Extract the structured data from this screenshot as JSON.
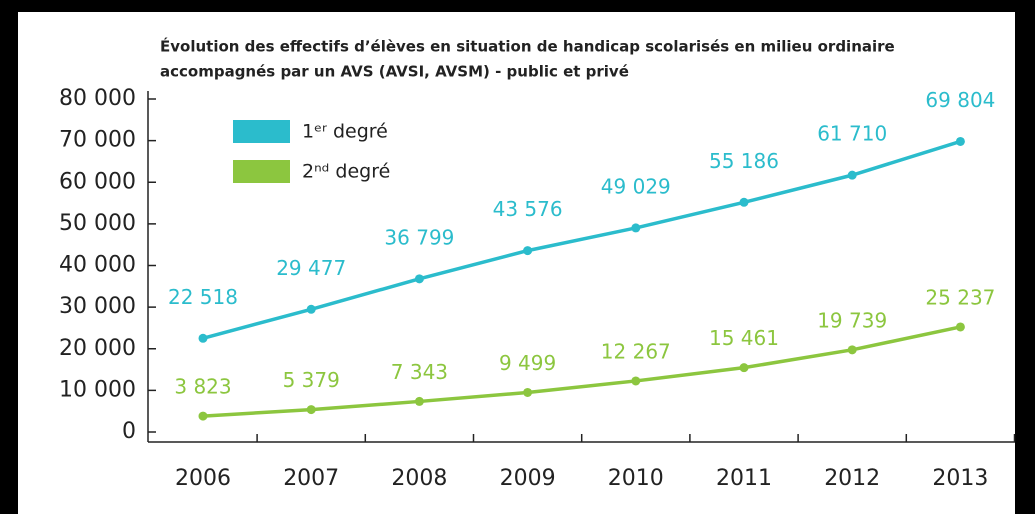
{
  "chart_data": {
    "type": "line",
    "title": [
      "Évolution des effectifs d’élèves en situation de handicap scolarisés en milieu ordinaire",
      "accompagnés par un AVS (AVSI, AVSM) - public et privé"
    ],
    "categories": [
      "2006",
      "2007",
      "2008",
      "2009",
      "2010",
      "2011",
      "2012",
      "2013"
    ],
    "series": [
      {
        "name": "1ᵉʳ degré",
        "color": "#2bbccc",
        "values": [
          22518,
          29477,
          36799,
          43576,
          49029,
          55186,
          61710,
          69804
        ],
        "value_labels": [
          "22 518",
          "29 477",
          "36 799",
          "43 576",
          "49 029",
          "55 186",
          "61 710",
          "69 804"
        ]
      },
      {
        "name": "2ⁿᵈ degré",
        "color": "#8cc63f",
        "values": [
          3823,
          5379,
          7343,
          9499,
          12267,
          15461,
          19739,
          25237
        ],
        "value_labels": [
          "3 823",
          "5 379",
          "7 343",
          "9 499",
          "12 267",
          "15 461",
          "19 739",
          "25 237"
        ]
      }
    ],
    "ylim": [
      0,
      80000
    ],
    "yticks": [
      0,
      {
        "value": 10000,
        "label": "10 000"
      },
      {
        "value": 20000,
        "label": "20 000"
      },
      {
        "value": 30000,
        "label": "30 000"
      },
      {
        "value": 40000,
        "label": "40 000"
      },
      {
        "value": 50000,
        "label": "50 000"
      },
      {
        "value": 60000,
        "label": "60 000"
      },
      {
        "value": 70000,
        "label": "70 000"
      },
      {
        "value": 80000,
        "label": "80 000"
      }
    ],
    "legend": "top-left"
  }
}
